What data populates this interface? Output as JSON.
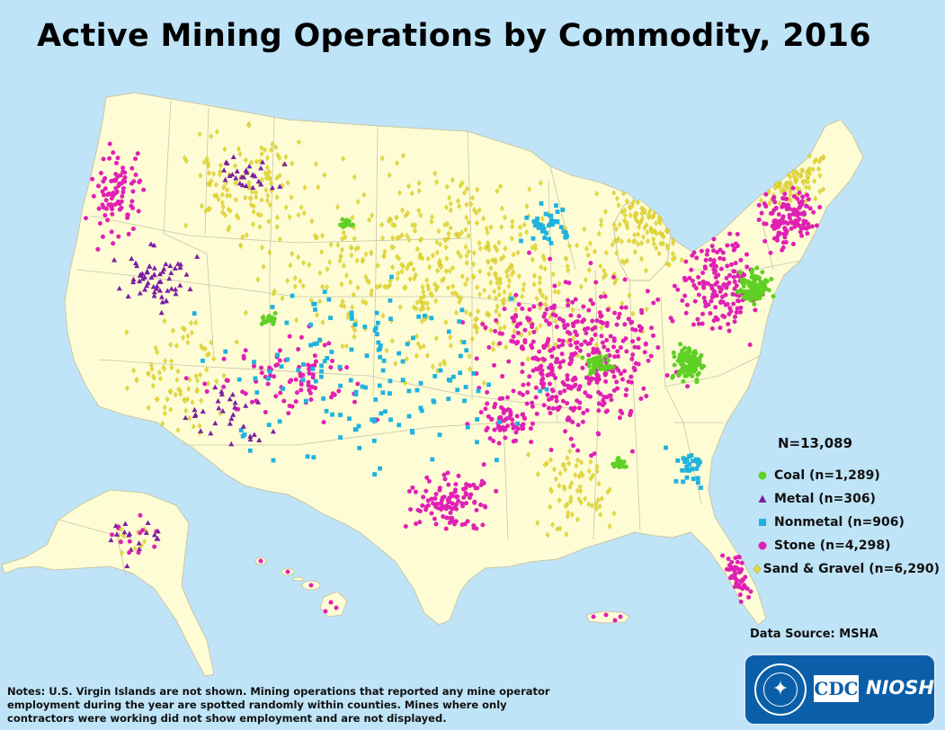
{
  "title": "Active Mining Operations by Commodity, 2016",
  "legend": {
    "total": "N=13,089",
    "items": [
      {
        "key": "coal",
        "label": "Coal (n=1,289)",
        "color": "#5fd024",
        "symbol": "circle"
      },
      {
        "key": "metal",
        "label": "Metal (n=306)",
        "color": "#7b1fa2",
        "symbol": "triangle"
      },
      {
        "key": "nonmetal",
        "label": "Nonmetal (n=906)",
        "color": "#1fb2e0",
        "symbol": "square"
      },
      {
        "key": "stone",
        "label": "Stone (n=4,298)",
        "color": "#e020b4",
        "symbol": "circle"
      },
      {
        "key": "sand_gravel",
        "label": "Sand & Gravel (n=6,290)",
        "color": "#e6db3a",
        "symbol": "diamond"
      }
    ]
  },
  "source": "Data Source: MSHA",
  "notes": "Notes: U.S. Virgin Islands are not shown. Mining operations that reported any mine operator employment during the year are spotted randomly within counties. Mines where only contractors were working did not show employment and are not displayed.",
  "logo": {
    "cdc": "CDC",
    "niosh": "NIOSH"
  },
  "colors": {
    "water": "#bfe4f7",
    "land": "#fdfcd4",
    "border": "#c8c6a8"
  }
}
